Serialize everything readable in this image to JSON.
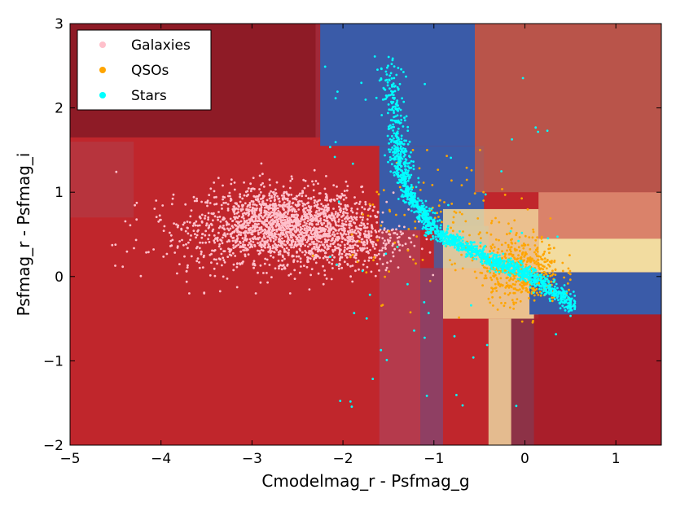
{
  "chart_data": {
    "type": "scatter",
    "title": "",
    "xlabel": "Cmodelmag_r - Psfmag_g",
    "ylabel": "Psfmag_r - Psfmag_i",
    "xlim": [
      -5,
      1.5
    ],
    "ylim": [
      -2,
      3
    ],
    "x_ticks": [
      -5,
      -4,
      -3,
      -2,
      -1,
      0,
      1
    ],
    "x_tick_labels": [
      "−5",
      "−4",
      "−3",
      "−2",
      "−1",
      "0",
      "1"
    ],
    "y_ticks": [
      -2,
      -1,
      0,
      1,
      2,
      3
    ],
    "y_tick_labels": [
      "−2",
      "−1",
      "0",
      "1",
      "2",
      "3"
    ],
    "grid": false,
    "legend_position": "top-left",
    "background": "decision-region shading from a tree ensemble classifier",
    "colors": {
      "galaxy_region": "#c0262c",
      "star_region": "#3a5ba8",
      "qso_region": "#f2dca0",
      "dark_region": "#8a1a26"
    },
    "series": [
      {
        "name": "Galaxies",
        "color": "#ffc0cb",
        "clusters": [
          {
            "center": [
              -2.7,
              0.62
            ],
            "spread": [
              0.45,
              0.22
            ],
            "count": 1600
          },
          {
            "center": [
              -2.0,
              0.45
            ],
            "spread": [
              0.35,
              0.2
            ],
            "count": 500
          },
          {
            "center": [
              -3.6,
              0.35
            ],
            "spread": [
              0.45,
              0.25
            ],
            "count": 120
          }
        ],
        "x_range": [
          -4.6,
          -0.6
        ],
        "y_range": [
          -0.2,
          1.6
        ]
      },
      {
        "name": "QSOs",
        "color": "#ffa500",
        "clusters": [
          {
            "center": [
              -0.05,
              0.08
            ],
            "spread": [
              0.22,
              0.2
            ],
            "count": 500
          },
          {
            "center": [
              -0.9,
              0.6
            ],
            "spread": [
              0.5,
              0.4
            ],
            "count": 120
          }
        ],
        "x_range": [
          -2.5,
          0.5
        ],
        "y_range": [
          -0.6,
          1.5
        ]
      },
      {
        "name": "Stars",
        "color": "#00ffff",
        "locus": [
          [
            -1.5,
            2.6
          ],
          [
            -1.4,
            1.6
          ],
          [
            -1.3,
            1.0
          ],
          [
            -1.0,
            0.55
          ],
          [
            -0.5,
            0.25
          ],
          [
            0.0,
            0.05
          ],
          [
            0.55,
            -0.35
          ]
        ],
        "count": 1500,
        "x_range": [
          -2.2,
          0.55
        ],
        "y_range": [
          -0.6,
          3.0
        ]
      }
    ]
  }
}
